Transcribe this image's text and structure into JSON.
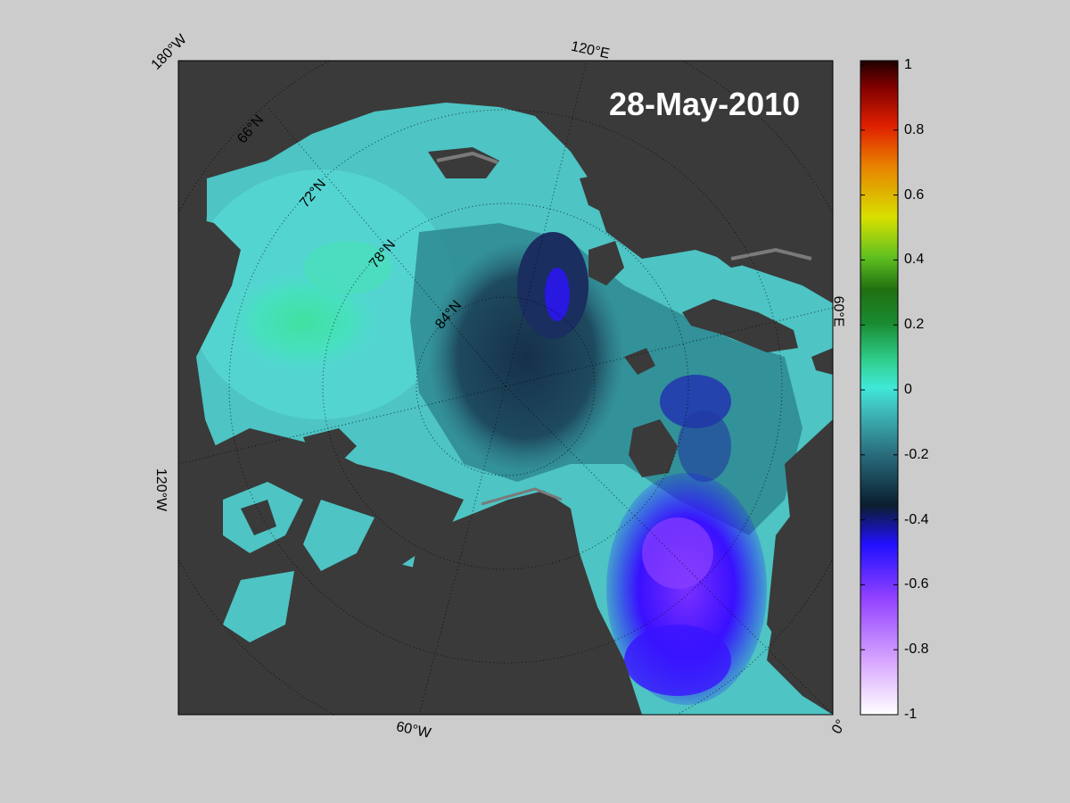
{
  "map": {
    "date": "28-May-2010",
    "longitude_labels": [
      "180°W",
      "120°E",
      "60°E",
      "0°",
      "60°W",
      "120°W"
    ],
    "latitude_labels": [
      "66°N",
      "72°N",
      "78°N",
      "84°N"
    ]
  },
  "colorbar": {
    "tick_labels": [
      "1",
      "0.8",
      "0.6",
      "0.4",
      "0.2",
      "0",
      "-0.2",
      "-0.4",
      "-0.6",
      "-0.8",
      "-1"
    ],
    "range": [
      -1,
      1
    ],
    "colors": [
      "#ffffff",
      "#c880ff",
      "#8000ff",
      "#2000ff",
      "#0b2a3a",
      "#2a6e7e",
      "#4ec4c0",
      "#4af0e0",
      "#2ad080",
      "#1a8a10",
      "#2e6e10",
      "#90e020",
      "#e0e000",
      "#e08000",
      "#e02000",
      "#a00000",
      "#300000"
    ]
  },
  "colors": {
    "background": "#cccccc",
    "land": "#3a3a3a",
    "ice_edge": "#7a7a7a",
    "sea_light": "#4ec8c4",
    "sea_dark": "#1e4a5e",
    "anomaly_neg": "#3a10ff"
  }
}
